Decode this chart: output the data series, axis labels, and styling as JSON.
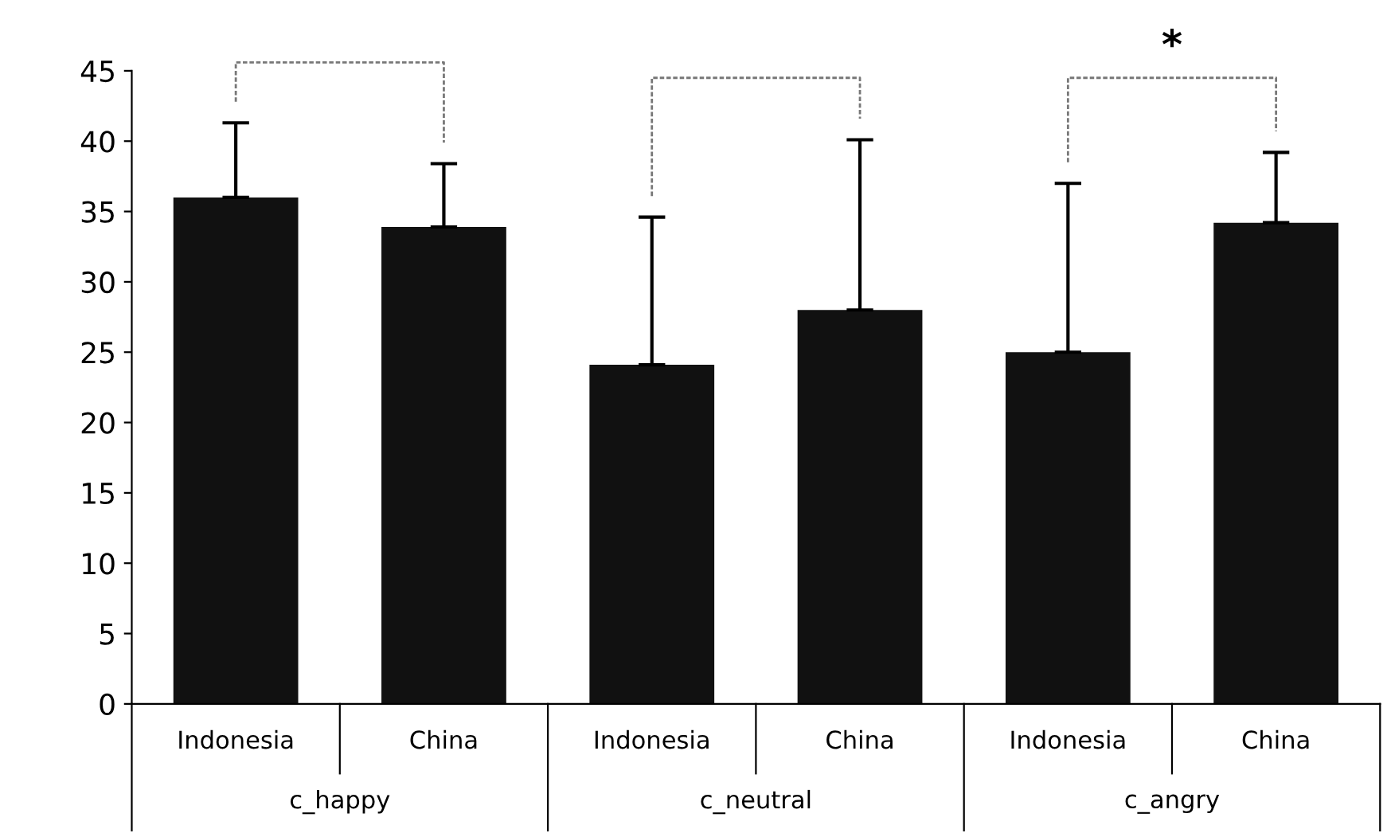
{
  "chart_data": {
    "type": "bar",
    "categories": [
      "Indonesia",
      "China",
      "Indonesia",
      "China",
      "Indonesia",
      "China"
    ],
    "values": [
      36.0,
      33.9,
      24.1,
      28.0,
      25.0,
      34.2
    ],
    "errors": [
      [
        36.0,
        41.3
      ],
      [
        33.9,
        38.4
      ],
      [
        24.1,
        34.6
      ],
      [
        28.0,
        40.1
      ],
      [
        25.0,
        37.0
      ],
      [
        34.2,
        39.2
      ]
    ],
    "color": "#111111",
    "ylim": [
      0,
      45
    ],
    "yticks": [
      0,
      5,
      10,
      15,
      20,
      25,
      30,
      35,
      40,
      45
    ],
    "grid": false,
    "legend": false,
    "annotations": [
      "c_happy",
      "c_neutral",
      "c_angry",
      "*"
    ]
  }
}
